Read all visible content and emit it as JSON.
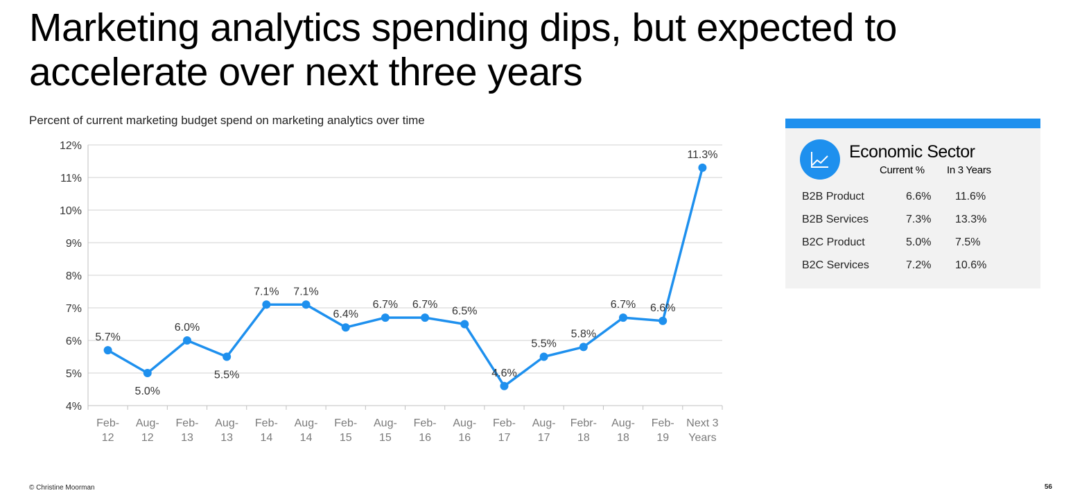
{
  "slide": {
    "title": "Marketing analytics spending dips, but expected to accelerate over next three years",
    "subtitle": "Percent of current marketing budget spend on marketing analytics over time",
    "footer_left": "© Christine Moorman",
    "page_number": "56"
  },
  "chart_data": {
    "type": "line",
    "title": "",
    "xlabel": "",
    "ylabel": "",
    "categories": [
      [
        "Feb-",
        "12"
      ],
      [
        "Aug-",
        "12"
      ],
      [
        "Feb-",
        "13"
      ],
      [
        "Aug-",
        "13"
      ],
      [
        "Feb-",
        "14"
      ],
      [
        "Aug-",
        "14"
      ],
      [
        "Feb-",
        "15"
      ],
      [
        "Aug-",
        "15"
      ],
      [
        "Feb-",
        "16"
      ],
      [
        "Aug-",
        "16"
      ],
      [
        "Feb-",
        "17"
      ],
      [
        "Aug-",
        "17"
      ],
      [
        "Febr-",
        "18"
      ],
      [
        "Aug-",
        "18"
      ],
      [
        "Feb-",
        "19"
      ],
      [
        "Next 3",
        "Years"
      ]
    ],
    "values": [
      5.7,
      5.0,
      6.0,
      5.5,
      7.1,
      7.1,
      6.4,
      6.7,
      6.7,
      6.5,
      4.6,
      5.5,
      5.8,
      6.7,
      6.6,
      11.3
    ],
    "data_labels": [
      "5.7%",
      "5.0%",
      "6.0%",
      "5.5%",
      "7.1%",
      "7.1%",
      "6.4%",
      "6.7%",
      "6.7%",
      "6.5%",
      "4.6%",
      "5.5%",
      "5.8%",
      "6.7%",
      "6.6%",
      "11.3%"
    ],
    "label_positions": [
      "above",
      "below",
      "above",
      "below",
      "above",
      "above",
      "above",
      "above",
      "above",
      "above",
      "above",
      "above",
      "above",
      "above",
      "above",
      "above"
    ],
    "ylim": [
      4,
      12
    ],
    "y_ticks": [
      4,
      5,
      6,
      7,
      8,
      9,
      10,
      11,
      12
    ],
    "y_tick_labels": [
      "4%",
      "5%",
      "6%",
      "7%",
      "8%",
      "9%",
      "10%",
      "11%",
      "12%"
    ],
    "grid": "horizontal",
    "legend": "none",
    "series_color": "#1e90ee",
    "grid_color": "#d0d0d0",
    "axis_color": "#bfbfbf"
  },
  "sector_panel": {
    "icon": "line-chart-icon",
    "heading": "Economic Sector",
    "col_current": "Current %",
    "col_future": "In 3 Years",
    "rows": [
      {
        "label": "B2B Product",
        "current": "6.6%",
        "future": "11.6%"
      },
      {
        "label": "B2B Services",
        "current": "7.3%",
        "future": "13.3%"
      },
      {
        "label": "B2C Product",
        "current": "5.0%",
        "future": "7.5%"
      },
      {
        "label": "B2C Services",
        "current": "7.2%",
        "future": "10.6%"
      }
    ],
    "accent_color": "#1e90ee",
    "background_color": "#f2f2f2"
  }
}
